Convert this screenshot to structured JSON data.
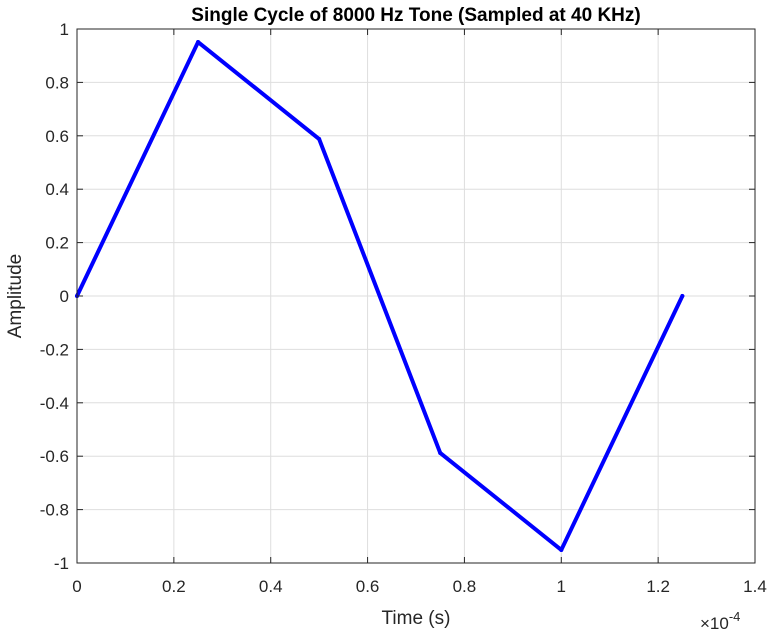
{
  "chart_data": {
    "type": "line",
    "title": "Single Cycle of 8000 Hz Tone (Sampled at 40 KHz)",
    "xlabel": "Time (s)",
    "ylabel": "Amplitude",
    "x_exponent_label": "×10",
    "x_exponent_power": "-4",
    "x_scale_factor": 0.0001,
    "xlim": [
      0,
      0.00014
    ],
    "ylim": [
      -1,
      1
    ],
    "grid": true,
    "x_ticks": [
      0,
      2e-05,
      4e-05,
      6e-05,
      8e-05,
      0.0001,
      0.00012,
      0.00014
    ],
    "x_tick_labels": [
      "0",
      "0.2",
      "0.4",
      "0.6",
      "0.8",
      "1",
      "1.2",
      "1.4"
    ],
    "y_ticks": [
      -1,
      -0.8,
      -0.6,
      -0.4,
      -0.2,
      0,
      0.2,
      0.4,
      0.6,
      0.8,
      1
    ],
    "y_tick_labels": [
      "-1",
      "-0.8",
      "-0.6",
      "-0.4",
      "-0.2",
      "0",
      "0.2",
      "0.4",
      "0.6",
      "0.8",
      "1"
    ],
    "series": [
      {
        "color": "#0000ff",
        "x": [
          0,
          2.5e-05,
          5e-05,
          7.5e-05,
          0.0001,
          0.000125
        ],
        "y": [
          0,
          0.9511,
          0.5878,
          -0.5878,
          -0.9511,
          0
        ]
      }
    ]
  }
}
